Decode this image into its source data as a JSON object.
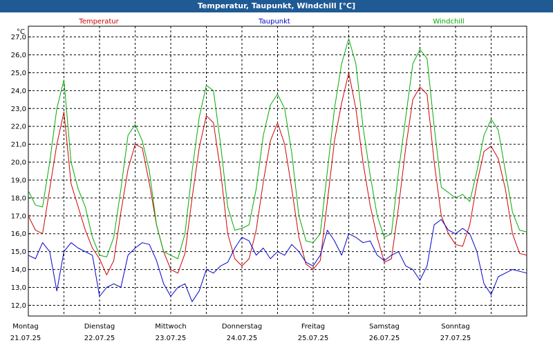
{
  "window": {
    "title": "Temperatur, Taupunkt, Windchill [°C]"
  },
  "chart_data": {
    "type": "line",
    "title": "Temperatur, Taupunkt, Windchill [°C]",
    "ylabel": "°C",
    "ylim": [
      11.4,
      27.6
    ],
    "yticks": [
      "12,0",
      "13,0",
      "14,0",
      "15,0",
      "16,0",
      "17,0",
      "18,0",
      "19,0",
      "20,0",
      "21,0",
      "22,0",
      "23,0",
      "24,0",
      "25,0",
      "26,0",
      "27,0"
    ],
    "xlim": [
      0,
      7
    ],
    "days": [
      {
        "day": "Montag",
        "date": "21.07.25"
      },
      {
        "day": "Dienstag",
        "date": "22.07.25"
      },
      {
        "day": "Mittwoch",
        "date": "23.07.25"
      },
      {
        "day": "Donnerstag",
        "date": "24.07.25"
      },
      {
        "day": "Freitag",
        "date": "25.07.25"
      },
      {
        "day": "Samstag",
        "date": "26.07.25"
      },
      {
        "day": "Sonntag",
        "date": "27.07.25"
      }
    ],
    "grid": true,
    "x_unit": "days since Montag 21.07.25 00:00",
    "series": [
      {
        "name": "Temperatur",
        "color": "#cc0000",
        "x": [
          0,
          0.1,
          0.2,
          0.3,
          0.4,
          0.5,
          0.6,
          0.7,
          0.8,
          0.9,
          1.0,
          1.1,
          1.2,
          1.3,
          1.4,
          1.5,
          1.6,
          1.7,
          1.8,
          1.9,
          2.0,
          2.1,
          2.2,
          2.3,
          2.4,
          2.5,
          2.6,
          2.7,
          2.8,
          2.9,
          3.0,
          3.1,
          3.2,
          3.3,
          3.4,
          3.5,
          3.6,
          3.7,
          3.8,
          3.9,
          4.0,
          4.1,
          4.2,
          4.3,
          4.4,
          4.5,
          4.6,
          4.7,
          4.8,
          4.9,
          5.0,
          5.1,
          5.2,
          5.3,
          5.4,
          5.5,
          5.6,
          5.7,
          5.8,
          5.9,
          6.0,
          6.1,
          6.2,
          6.3,
          6.4,
          6.5,
          6.6,
          6.7,
          6.8,
          6.9,
          7.0
        ],
        "y": [
          17.0,
          16.2,
          16.0,
          18.5,
          21.0,
          22.8,
          18.8,
          17.5,
          16.2,
          15.2,
          14.6,
          13.7,
          14.5,
          17.2,
          19.6,
          21.0,
          20.8,
          18.8,
          16.5,
          15.0,
          14.0,
          13.8,
          14.9,
          18.0,
          20.8,
          22.6,
          22.2,
          19.5,
          16.0,
          14.6,
          14.2,
          14.6,
          16.2,
          18.9,
          21.2,
          22.2,
          21.0,
          18.5,
          15.8,
          14.3,
          14.0,
          14.5,
          17.8,
          21.2,
          23.3,
          25.0,
          23.0,
          20.0,
          17.6,
          15.8,
          14.4,
          14.6,
          17.5,
          20.8,
          23.5,
          24.2,
          23.8,
          20.0,
          17.0,
          16.0,
          15.4,
          15.3,
          16.5,
          18.8,
          20.6,
          20.9,
          20.2,
          18.5,
          16.0,
          14.9,
          14.8
        ]
      },
      {
        "name": "Taupunkt",
        "color": "#0000cc",
        "x": [
          0,
          0.1,
          0.2,
          0.3,
          0.4,
          0.5,
          0.6,
          0.7,
          0.8,
          0.9,
          1.0,
          1.1,
          1.2,
          1.3,
          1.4,
          1.5,
          1.6,
          1.7,
          1.8,
          1.9,
          2.0,
          2.1,
          2.2,
          2.3,
          2.4,
          2.5,
          2.6,
          2.7,
          2.8,
          2.9,
          3.0,
          3.1,
          3.2,
          3.3,
          3.4,
          3.5,
          3.6,
          3.7,
          3.8,
          3.9,
          4.0,
          4.1,
          4.2,
          4.3,
          4.4,
          4.5,
          4.6,
          4.7,
          4.8,
          4.9,
          5.0,
          5.1,
          5.2,
          5.3,
          5.4,
          5.5,
          5.6,
          5.7,
          5.8,
          5.9,
          6.0,
          6.1,
          6.2,
          6.3,
          6.4,
          6.5,
          6.6,
          6.7,
          6.8,
          6.9,
          7.0
        ],
        "y": [
          14.8,
          14.6,
          15.5,
          15.0,
          12.8,
          15.0,
          15.5,
          15.2,
          15.0,
          14.8,
          12.5,
          13.0,
          13.2,
          13.0,
          14.8,
          15.2,
          15.5,
          15.4,
          14.5,
          13.2,
          12.5,
          13.0,
          13.2,
          12.2,
          12.8,
          14.0,
          13.8,
          14.2,
          14.4,
          15.2,
          15.8,
          15.6,
          14.8,
          15.2,
          14.6,
          15.0,
          14.8,
          15.4,
          15.0,
          14.4,
          14.2,
          14.8,
          16.2,
          15.6,
          14.8,
          16.0,
          15.8,
          15.5,
          15.6,
          14.8,
          14.5,
          14.8,
          15.0,
          14.2,
          14.0,
          13.4,
          14.2,
          16.5,
          16.8,
          16.2,
          16.0,
          16.3,
          16.0,
          15.0,
          13.2,
          12.6,
          13.6,
          13.8,
          14.0,
          13.9,
          13.8
        ]
      },
      {
        "name": "Windchill",
        "color": "#00aa00",
        "x": [
          0,
          0.1,
          0.2,
          0.3,
          0.4,
          0.5,
          0.6,
          0.7,
          0.8,
          0.9,
          1.0,
          1.1,
          1.2,
          1.3,
          1.4,
          1.5,
          1.6,
          1.7,
          1.8,
          1.9,
          2.0,
          2.1,
          2.2,
          2.3,
          2.4,
          2.5,
          2.6,
          2.7,
          2.8,
          2.9,
          3.0,
          3.1,
          3.2,
          3.3,
          3.4,
          3.5,
          3.6,
          3.7,
          3.8,
          3.9,
          4.0,
          4.1,
          4.2,
          4.3,
          4.4,
          4.5,
          4.6,
          4.7,
          4.8,
          4.9,
          5.0,
          5.1,
          5.2,
          5.3,
          5.4,
          5.5,
          5.6,
          5.7,
          5.8,
          5.9,
          6.0,
          6.1,
          6.2,
          6.3,
          6.4,
          6.5,
          6.6,
          6.7,
          6.8,
          6.9,
          7.0
        ],
        "y": [
          18.4,
          17.6,
          17.5,
          20.0,
          23.0,
          24.6,
          20.0,
          18.5,
          17.5,
          15.8,
          14.8,
          14.7,
          15.8,
          18.5,
          21.5,
          22.1,
          21.2,
          19.5,
          16.5,
          15.0,
          14.8,
          14.6,
          16.0,
          19.5,
          22.5,
          24.3,
          24.0,
          21.0,
          17.5,
          16.2,
          16.3,
          16.5,
          18.5,
          21.5,
          23.2,
          23.8,
          23.0,
          20.5,
          17.0,
          15.6,
          15.5,
          16.0,
          19.5,
          23.0,
          25.5,
          26.9,
          25.5,
          22.0,
          19.3,
          17.0,
          15.8,
          16.0,
          19.5,
          22.5,
          25.5,
          26.3,
          25.8,
          22.0,
          18.6,
          18.3,
          18.0,
          18.2,
          17.8,
          19.5,
          21.5,
          22.4,
          21.8,
          19.5,
          17.2,
          16.2,
          16.1
        ]
      }
    ]
  }
}
